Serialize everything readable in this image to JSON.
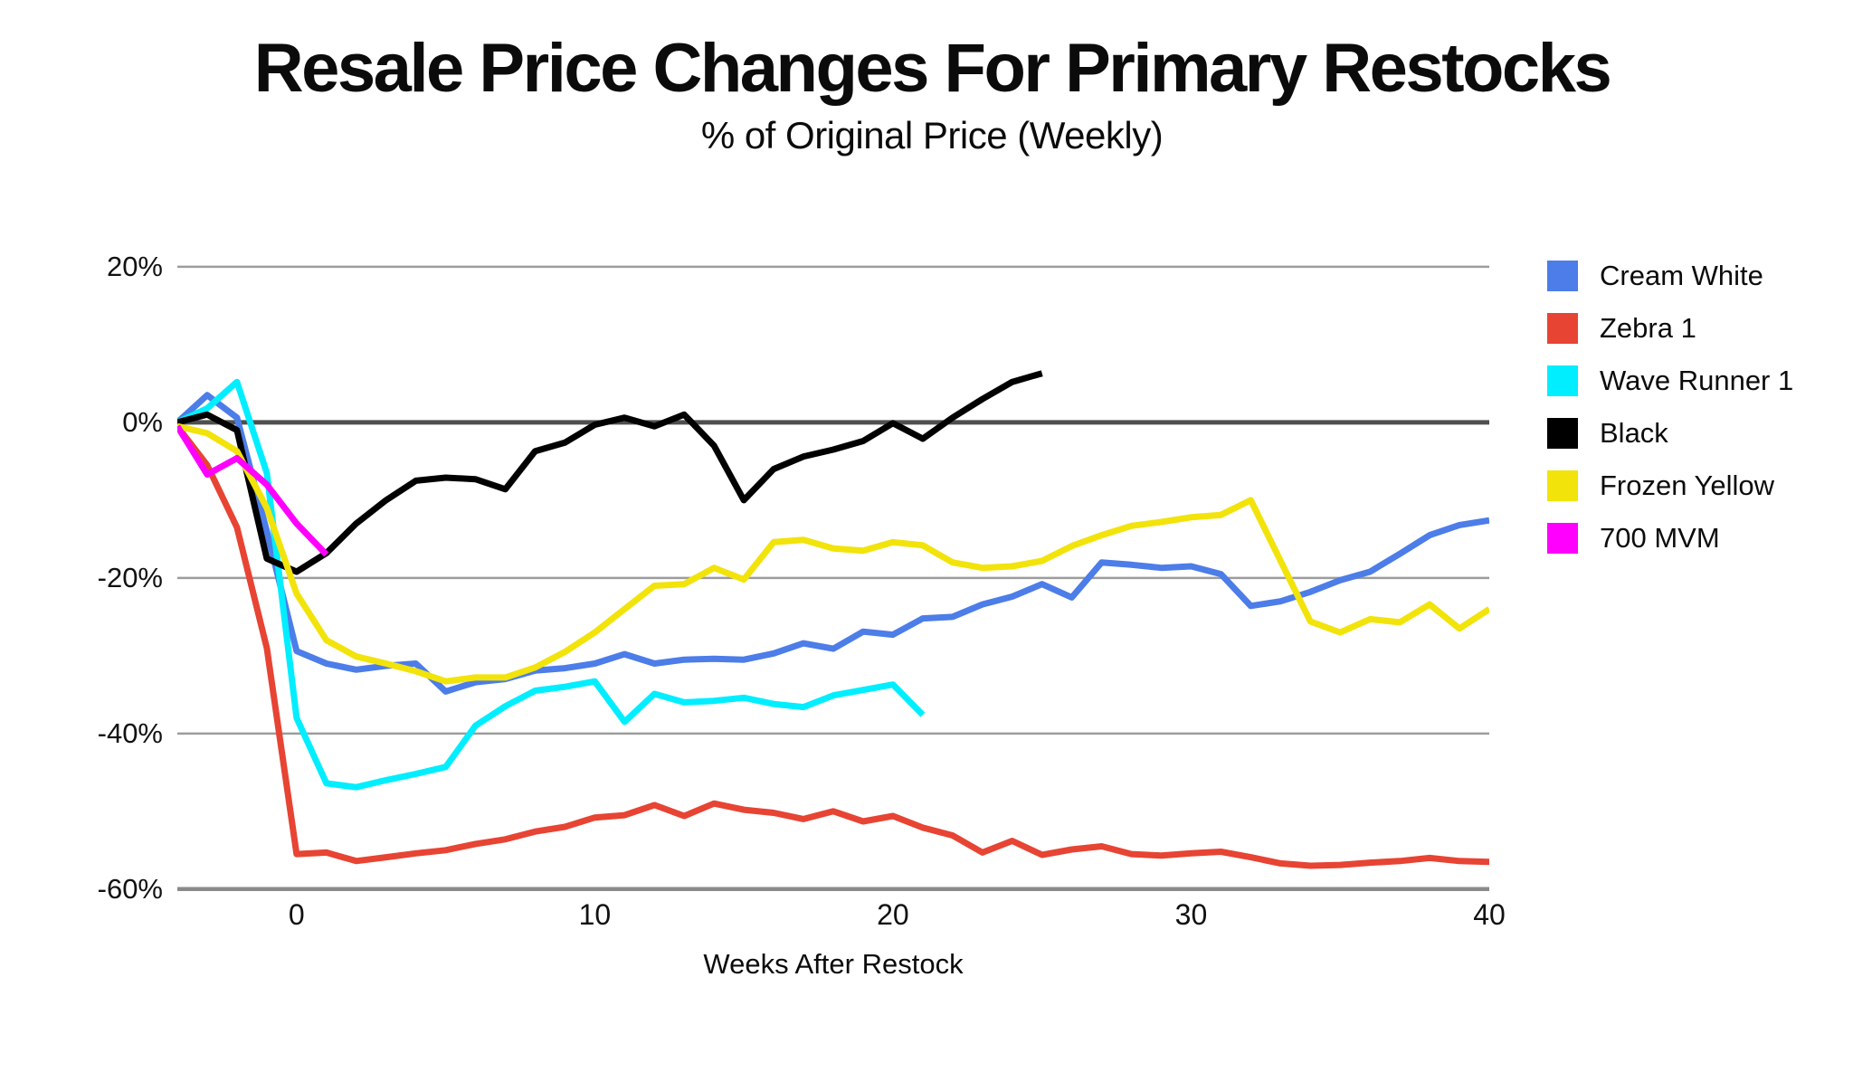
{
  "header": {
    "title": "Resale Price Changes For Primary Restocks",
    "subtitle": "% of Original Price (Weekly)"
  },
  "chart_data": {
    "type": "line",
    "title": "Resale Price Changes For Primary Restocks",
    "subtitle": "% of Original Price (Weekly)",
    "xlabel": "Weeks After Restock",
    "ylabel": "",
    "xlim": [
      -4,
      40
    ],
    "ylim": [
      -62,
      22.9
    ],
    "grid": true,
    "legend_position": "right",
    "x_ticks": [
      0,
      10,
      20,
      30,
      40
    ],
    "y_ticks": [
      {
        "value": 20,
        "label": "20%",
        "line": "minor"
      },
      {
        "value": 0,
        "label": "0%",
        "line": "zero"
      },
      {
        "value": -20,
        "label": "-20%",
        "line": "minor"
      },
      {
        "value": -40,
        "label": "-40%",
        "line": "minor"
      },
      {
        "value": -60,
        "label": "-60%",
        "line": "axis"
      }
    ],
    "line_width": 7,
    "grid_colors": {
      "minor": "#9C9C9C",
      "zero": "#4F4F4F",
      "axis": "#8A8A8A"
    },
    "series": [
      {
        "name": "Cream White",
        "color": "#4C7DE8",
        "x_start": -4,
        "values": [
          0,
          3.5,
          0.6,
          -14,
          -29.4,
          -31,
          -31.8,
          -31.3,
          -31,
          -34.6,
          -33.4,
          -33,
          -31.9,
          -31.6,
          -31,
          -29.8,
          -31,
          -30.5,
          -30.4,
          -30.5,
          -29.7,
          -28.4,
          -29.1,
          -26.9,
          -27.3,
          -25.2,
          -25,
          -23.4,
          -22.4,
          -20.8,
          -22.5,
          -18,
          -18.3,
          -18.7,
          -18.5,
          -19.5,
          -23.6,
          -23,
          -21.8,
          -20.3,
          -19.2,
          -16.9,
          -14.5,
          -13.2,
          -12.6
        ]
      },
      {
        "name": "Zebra 1",
        "color": "#E74433",
        "x_start": -4,
        "values": [
          -0.5,
          -5.5,
          -13.5,
          -29,
          -55.5,
          -55.3,
          -56.4,
          -55.9,
          -55.4,
          -55,
          -54.2,
          -53.6,
          -52.6,
          -52,
          -50.8,
          -50.5,
          -49.2,
          -50.6,
          -49,
          -49.8,
          -50.2,
          -51,
          -50,
          -51.3,
          -50.6,
          -52.1,
          -53.1,
          -55.3,
          -53.8,
          -55.6,
          -54.9,
          -54.5,
          -55.5,
          -55.7,
          -55.4,
          -55.2,
          -55.9,
          -56.7,
          -57,
          -56.9,
          -56.6,
          -56.4,
          -56,
          -56.4,
          -56.5
        ]
      },
      {
        "name": "Wave Runner 1",
        "color": "#00EEFF",
        "x_start": -4,
        "values": [
          0,
          1.8,
          5.2,
          -6.5,
          -38,
          -46.4,
          -46.9,
          -46,
          -45.2,
          -44.3,
          -39,
          -36.5,
          -34.5,
          -34,
          -33.3,
          -38.5,
          -34.9,
          -36,
          -35.8,
          -35.4,
          -36.2,
          -36.6,
          -35.1,
          -34.4,
          -33.7,
          -37.6
        ]
      },
      {
        "name": "Black",
        "color": "#000000",
        "x_start": -4,
        "values": [
          0,
          1,
          -1,
          -17.5,
          -19.2,
          -16.8,
          -13,
          -10,
          -7.5,
          -7.1,
          -7.3,
          -8.6,
          -3.7,
          -2.6,
          -0.3,
          0.6,
          -0.5,
          1,
          -3,
          -10,
          -6,
          -4.4,
          -3.5,
          -2.4,
          -0.1,
          -2.1,
          0.6,
          3,
          5.2,
          6.3
        ]
      },
      {
        "name": "Frozen Yellow",
        "color": "#F2E30A",
        "x_start": -4,
        "values": [
          -0.5,
          -1.4,
          -3.7,
          -11,
          -22,
          -28,
          -30.1,
          -31,
          -32,
          -33.3,
          -32.8,
          -32.8,
          -31.5,
          -29.5,
          -27,
          -24,
          -21,
          -20.8,
          -18.7,
          -20.2,
          -15.4,
          -15.1,
          -16.2,
          -16.5,
          -15.4,
          -15.8,
          -18,
          -18.7,
          -18.5,
          -17.8,
          -15.9,
          -14.5,
          -13.3,
          -12.8,
          -12.2,
          -11.9,
          -10,
          -17.8,
          -25.6,
          -27,
          -25.3,
          -25.7,
          -23.4,
          -26.5,
          -24
        ]
      },
      {
        "name": "700 MVM",
        "color": "#FF00FF",
        "x_start": -4,
        "values": [
          -0.5,
          -6.7,
          -4.6,
          -8,
          -13,
          -17
        ]
      }
    ]
  }
}
